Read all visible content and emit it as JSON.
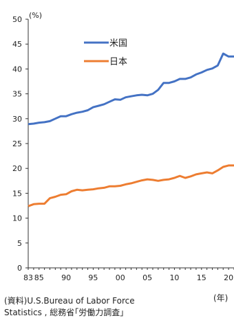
{
  "chart_data": {
    "type": "line",
    "title": "",
    "ylabel": "(%)",
    "xlabel": "(年)",
    "ylim": [
      0,
      50
    ],
    "yticks": [
      "0",
      "5",
      "10",
      "15",
      "20",
      "25",
      "30",
      "35",
      "40",
      "45",
      "50"
    ],
    "xticks": [
      "83",
      "85",
      "90",
      "95",
      "00",
      "05",
      "10",
      "15",
      "20"
    ],
    "xlim": [
      1983,
      2021
    ],
    "grid": false,
    "legend_position": "top-left",
    "x": [
      1983,
      1984,
      1985,
      1986,
      1987,
      1988,
      1989,
      1990,
      1991,
      1992,
      1993,
      1994,
      1995,
      1996,
      1997,
      1998,
      1999,
      2000,
      2001,
      2002,
      2003,
      2004,
      2005,
      2006,
      2007,
      2008,
      2009,
      2010,
      2011,
      2012,
      2013,
      2014,
      2015,
      2016,
      2017,
      2018,
      2019,
      2020,
      2021
    ],
    "series": [
      {
        "name": "米国",
        "color": "#4472c4",
        "values": [
          28.9,
          29.0,
          29.2,
          29.3,
          29.5,
          30.0,
          30.5,
          30.5,
          30.9,
          31.2,
          31.4,
          31.7,
          32.3,
          32.6,
          32.9,
          33.4,
          33.9,
          33.8,
          34.3,
          34.5,
          34.7,
          34.8,
          34.7,
          35.0,
          35.8,
          37.2,
          37.2,
          37.5,
          38.0,
          38.0,
          38.3,
          38.9,
          39.3,
          39.8,
          40.1,
          40.7,
          43.1,
          42.5,
          42.5
        ]
      },
      {
        "name": "日本",
        "color": "#ed7d31",
        "values": [
          12.4,
          12.8,
          12.9,
          12.9,
          14.0,
          14.3,
          14.7,
          14.8,
          15.4,
          15.7,
          15.6,
          15.7,
          15.8,
          16.0,
          16.1,
          16.4,
          16.4,
          16.5,
          16.8,
          17.0,
          17.3,
          17.6,
          17.8,
          17.7,
          17.5,
          17.7,
          17.8,
          18.1,
          18.5,
          18.1,
          18.4,
          18.8,
          19.0,
          19.2,
          19.0,
          19.6,
          20.3,
          20.6,
          20.6
        ]
      }
    ]
  },
  "source_note": {
    "line1": "(資料)U.S.Bureau of Labor Force",
    "line2": "Statistics , 総務省｢労働力調査｣"
  }
}
